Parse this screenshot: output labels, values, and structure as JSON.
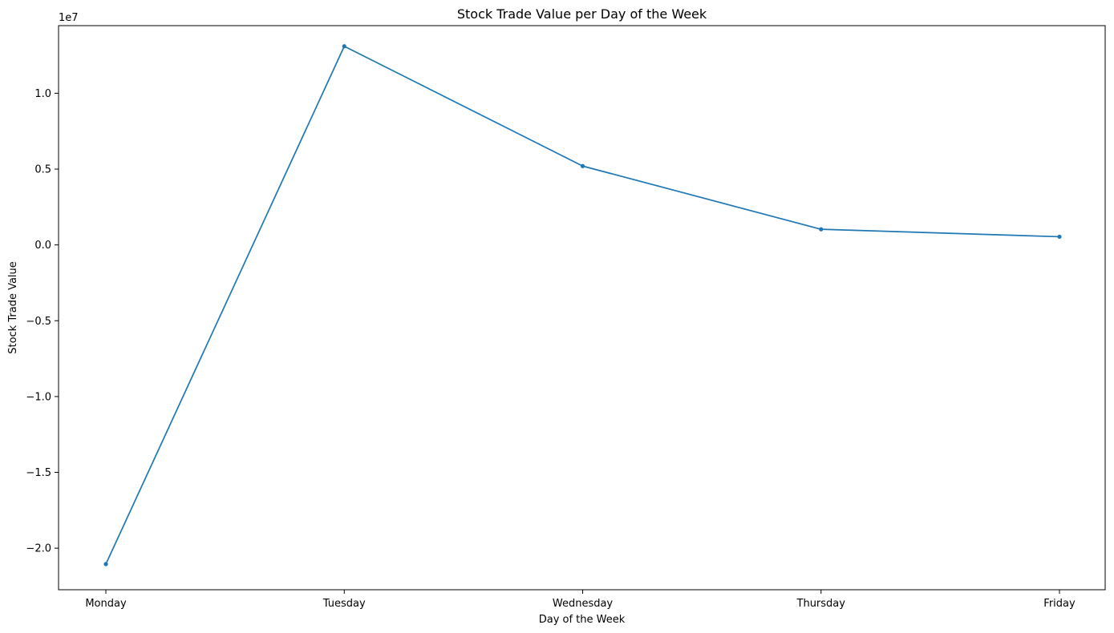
{
  "chart_data": {
    "type": "line",
    "title": "Stock Trade Value per Day of the Week",
    "xlabel": "Day of the Week",
    "ylabel": "Stock Trade Value",
    "offset_text": "1e7",
    "categories": [
      "Monday",
      "Tuesday",
      "Wednesday",
      "Thursday",
      "Friday"
    ],
    "series": [
      {
        "values": [
          -21050000,
          13100000,
          5200000,
          1030000,
          540000
        ],
        "color": "#1f77b4"
      }
    ],
    "ylim": [
      -22740000,
      14460000
    ],
    "yticks": [
      -20000000,
      -15000000,
      -10000000,
      -5000000,
      0,
      5000000,
      10000000
    ],
    "ytick_labels": [
      "−2.0",
      "−1.5",
      "−1.0",
      "−0.5",
      "0.0",
      "0.5",
      "1.0"
    ],
    "grid": false,
    "legend": "none",
    "marker": "dot"
  }
}
